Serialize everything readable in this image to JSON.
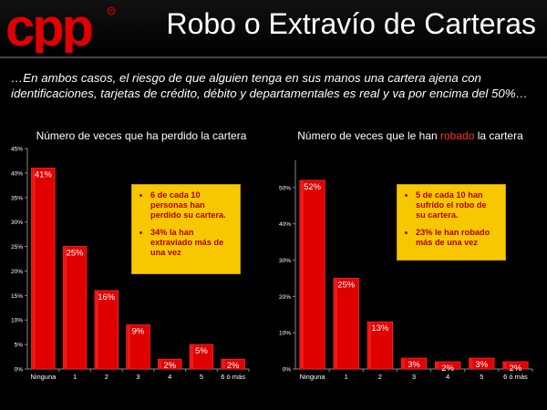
{
  "header": {
    "logo_text": "cpp",
    "title": "Robo o Extravío de Carteras"
  },
  "subtitle": "…En ambos casos, el riesgo de que alguien tenga en sus manos una cartera ajena con identificaciones, tarjetas de crédito, débito y departamentales es real y va por encima del 50%…",
  "colors": {
    "bar": "#e00000",
    "bar_light": "#ff2a2a",
    "callout_bg": "#f7c800",
    "callout_text": "#b00000",
    "highlight": "#ff3333"
  },
  "chart_data": [
    {
      "type": "bar",
      "title": "Número de veces que ha perdido la cartera",
      "categories": [
        "Ninguna",
        "1",
        "2",
        "3",
        "4",
        "5",
        "6 ó más"
      ],
      "values": [
        41,
        25,
        16,
        9,
        2,
        5,
        2
      ],
      "value_labels": [
        "41%",
        "25%",
        "16%",
        "9%",
        "2%",
        "5%",
        "2%"
      ],
      "yticks": [
        0,
        5,
        10,
        15,
        20,
        25,
        30,
        35,
        40,
        45
      ],
      "ytick_labels": [
        "0%",
        "5%",
        "10%",
        "15%",
        "20%",
        "25%",
        "30%",
        "35%",
        "40%",
        "45%"
      ],
      "ylim": [
        0,
        45
      ],
      "callout": [
        "6 de cada 10 personas han perdido su cartera.",
        "34% la han extraviado más de una vez"
      ]
    },
    {
      "type": "bar",
      "title_parts": [
        "Número de veces que le han ",
        "robado",
        " la cartera"
      ],
      "categories": [
        "Ninguna",
        "1",
        "2",
        "3",
        "4",
        "5",
        "6 ó más"
      ],
      "values": [
        52,
        25,
        13,
        3,
        2,
        3,
        2
      ],
      "value_labels": [
        "52%",
        "25%",
        "13%",
        "3%",
        "2%",
        "3%",
        "2%"
      ],
      "yticks": [
        0,
        10,
        20,
        30,
        40,
        50
      ],
      "ytick_labels": [
        "0%",
        "10%",
        "20%",
        "30%",
        "40%",
        "50%"
      ],
      "ylim": [
        0,
        57.5
      ],
      "callout": [
        "5 de cada 10 han sufrido el robo de su cartera.",
        "23% le han robado más de una vez"
      ]
    }
  ]
}
